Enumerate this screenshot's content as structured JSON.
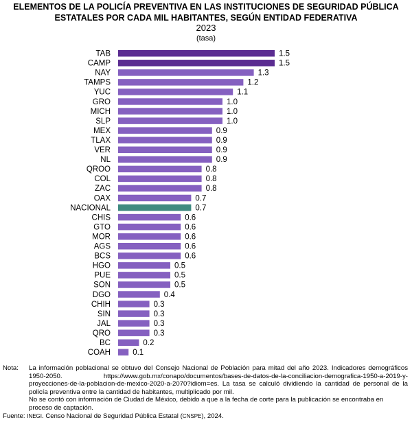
{
  "header": {
    "title_line1": "ELEMENTOS DE LA POLICÍA PREVENTIVA EN LAS INSTITUCIONES DE SEGURIDAD PÚBLICA",
    "title_line2": "ESTATALES POR CADA MIL HABITANTES, SEGÚN ENTIDAD FEDERATIVA",
    "year": "2023",
    "unit": "(tasa)"
  },
  "colors": {
    "bar_top": "#5b2c91",
    "bar": "#8560c0",
    "bar_national": "#3f8a80"
  },
  "chart_data": {
    "type": "bar",
    "orientation": "horizontal",
    "title": "ELEMENTOS DE LA POLICÍA PREVENTIVA EN LAS INSTITUCIONES DE SEGURIDAD PÚBLICA ESTATALES POR CADA MIL HABITANTES, SEGÚN ENTIDAD FEDERATIVA",
    "subtitle": "2023",
    "unit": "(tasa)",
    "categories": [
      "TAB",
      "CAMP",
      "NAY",
      "TAMPS",
      "YUC",
      "GRO",
      "MICH",
      "SLP",
      "MEX",
      "TLAX",
      "VER",
      "NL",
      "QROO",
      "COL",
      "ZAC",
      "OAX",
      "NACIONAL",
      "CHIS",
      "GTO",
      "MOR",
      "AGS",
      "BCS",
      "HGO",
      "PUE",
      "SON",
      "DGO",
      "CHIH",
      "SIN",
      "JAL",
      "QRO",
      "BC",
      "COAH"
    ],
    "values": [
      1.5,
      1.5,
      1.3,
      1.2,
      1.1,
      1.0,
      1.0,
      1.0,
      0.9,
      0.9,
      0.9,
      0.9,
      0.8,
      0.8,
      0.8,
      0.7,
      0.7,
      0.6,
      0.6,
      0.6,
      0.6,
      0.6,
      0.5,
      0.5,
      0.5,
      0.4,
      0.3,
      0.3,
      0.3,
      0.3,
      0.2,
      0.1
    ],
    "value_labels": [
      "1.5",
      "1.5",
      "1.3",
      "1.2",
      "1.1",
      "1.0",
      "1.0",
      "1.0",
      "0.9",
      "0.9",
      "0.9",
      "0.9",
      "0.8",
      "0.8",
      "0.8",
      "0.7",
      "0.7",
      "0.6",
      "0.6",
      "0.6",
      "0.6",
      "0.6",
      "0.5",
      "0.5",
      "0.5",
      "0.4",
      "0.3",
      "0.3",
      "0.3",
      "0.3",
      "0.2",
      "0.1"
    ],
    "highlight": "NACIONAL",
    "xlim": [
      0,
      1.55
    ],
    "grid": false,
    "legend": "none"
  },
  "notes": {
    "label": "Nota:",
    "para1": "La información poblacional se obtuvo del Consejo Nacional de Población para mitad del año 2023. Indicadores demográficos 1950-2050. https://www.gob.mx/conapo/documentos/bases-de-datos-de-la-conciliacion-demografica-1950-a-2019-y-proyecciones-de-la-poblacion-de-mexico-2020-a-2070?idiom=es. La tasa se calculó dividiendo la cantidad de personal de la policía preventiva entre la cantidad de habitantes, multiplicado por mil.",
    "para2": "No se contó con información de Ciudad de México, debido a que a la fecha de corte para la publicación se encontraba en proceso de captación.",
    "source_label": "Fuente:",
    "source_org": "INEGI",
    "source_text": ". Censo Nacional de Seguridad Pública Estatal (",
    "source_abbr": "CNSPE",
    "source_end": "), 2024."
  }
}
